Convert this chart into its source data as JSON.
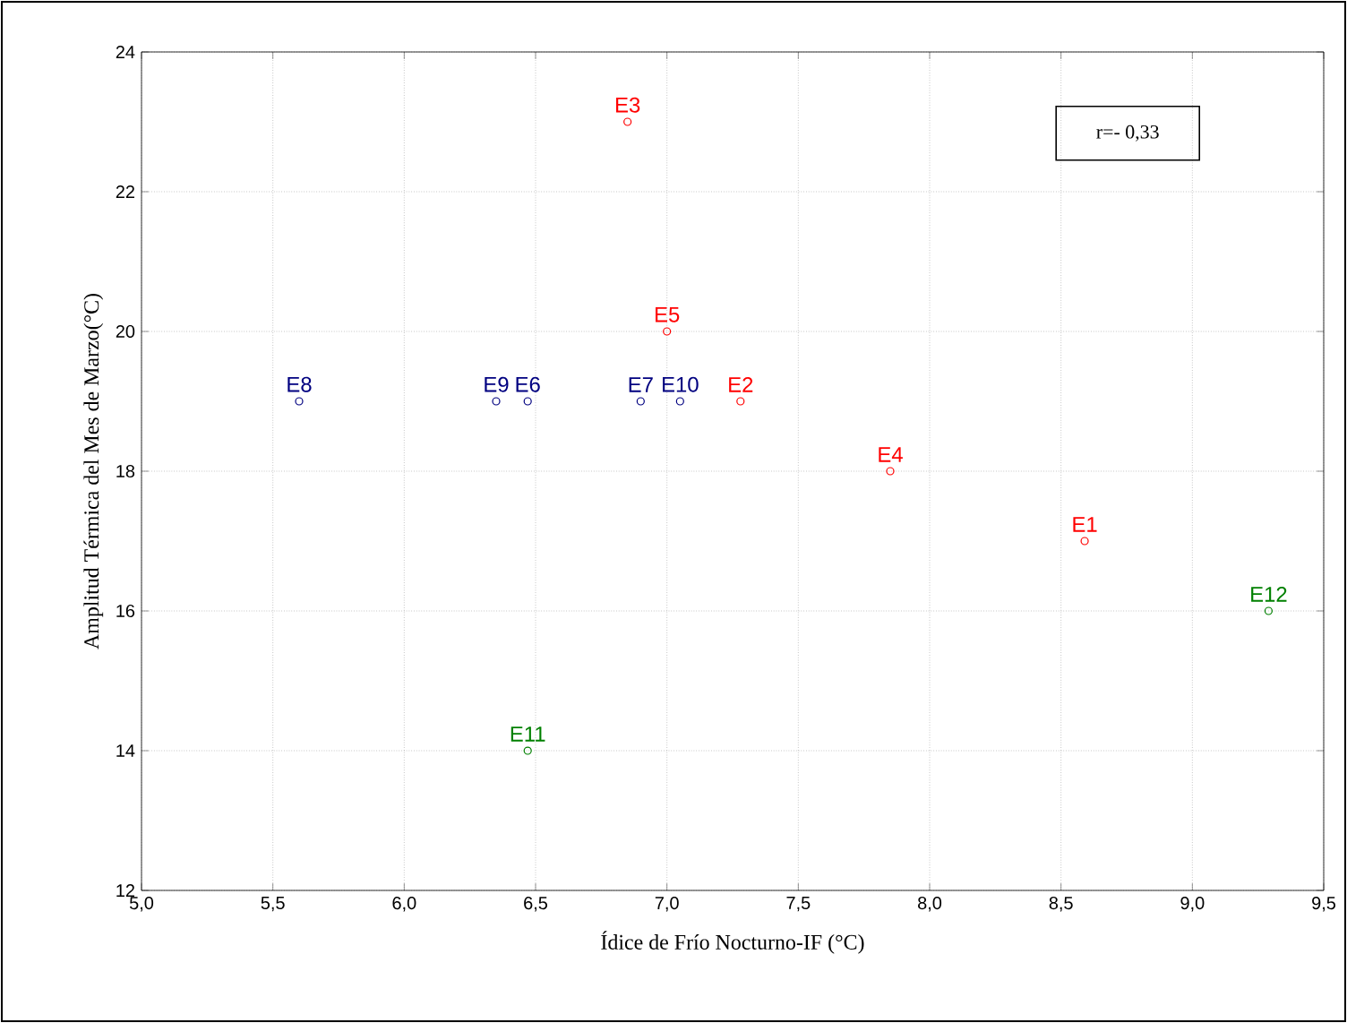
{
  "chart_data": {
    "type": "scatter",
    "xlabel": "Ídice de  Frío Nocturno-IF (°C)",
    "ylabel": "Amplitud Térmica del Mes de Marzo(°C)",
    "series": [
      {
        "color": "#ff0000",
        "x": [
          8.59,
          7.28,
          6.85,
          7.85,
          7.0
        ],
        "values": [
          17,
          19,
          23,
          18,
          20
        ]
      },
      {
        "color": "#000080",
        "x": [
          6.47,
          6.9,
          5.6,
          6.35,
          7.05
        ],
        "values": [
          19,
          19,
          19,
          19,
          19
        ]
      },
      {
        "color": "#008000",
        "x": [
          6.47,
          9.29
        ],
        "values": [
          14,
          16
        ]
      }
    ],
    "annotations": [
      {
        "text": "E1",
        "x": 8.59,
        "y": 17
      },
      {
        "text": "E2",
        "x": 7.28,
        "y": 19
      },
      {
        "text": "E3",
        "x": 6.85,
        "y": 23
      },
      {
        "text": "E4",
        "x": 7.85,
        "y": 18
      },
      {
        "text": "E5",
        "x": 7.0,
        "y": 20
      },
      {
        "text": "E6",
        "x": 6.47,
        "y": 19
      },
      {
        "text": "E7",
        "x": 6.9,
        "y": 19
      },
      {
        "text": "E8",
        "x": 5.6,
        "y": 19
      },
      {
        "text": "E9",
        "x": 6.35,
        "y": 19
      },
      {
        "text": "E10",
        "x": 7.05,
        "y": 19
      },
      {
        "text": "E11",
        "x": 6.47,
        "y": 14
      },
      {
        "text": "E12",
        "x": 9.29,
        "y": 16
      },
      "r=- 0,33"
    ],
    "xlim": [
      5.0,
      9.5
    ],
    "xticks": [
      {
        "value": 5.0,
        "label": "5,0"
      },
      {
        "value": 5.5,
        "label": "5,5"
      },
      {
        "value": 6.0,
        "label": "6,0"
      },
      {
        "value": 6.5,
        "label": "6,5"
      },
      {
        "value": 7.0,
        "label": "7,0"
      },
      {
        "value": 7.5,
        "label": "7,5"
      },
      {
        "value": 8.0,
        "label": "8,0"
      },
      {
        "value": 8.5,
        "label": "8,5"
      },
      {
        "value": 9.0,
        "label": "9,0"
      },
      {
        "value": 9.5,
        "label": "9,5"
      }
    ],
    "ylim": [
      12,
      24
    ],
    "yticks": [
      12,
      14,
      16,
      18,
      20,
      22,
      24
    ],
    "grid": true,
    "marker": "circle"
  }
}
